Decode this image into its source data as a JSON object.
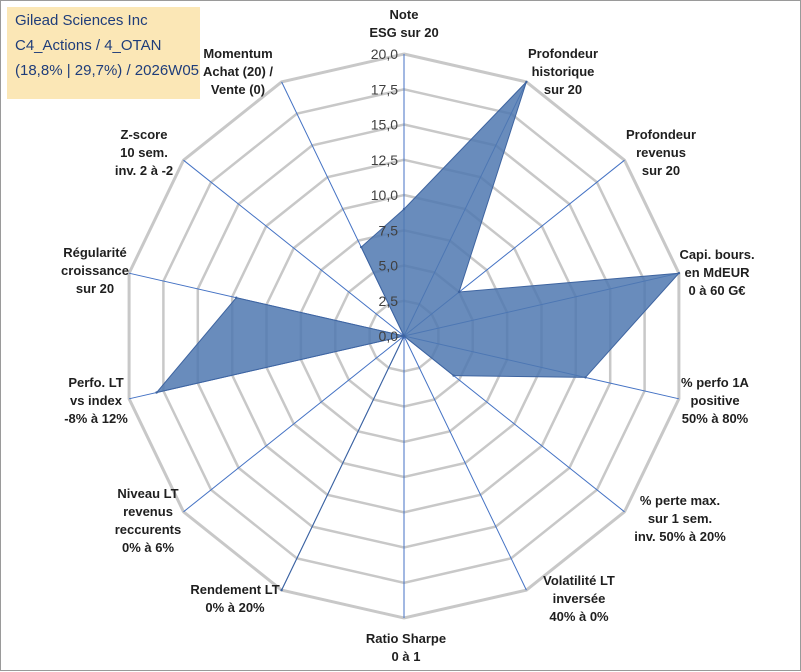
{
  "info": {
    "line1": "Gilead Sciences Inc",
    "line2": "C4_Actions / 4_OTAN",
    "line3": "(18,8% | 29,7%) / 2026W05"
  },
  "chart_data": {
    "type": "radar",
    "title": "",
    "range": [
      0,
      20
    ],
    "ticks": [
      "0,0",
      "2,5",
      "5,0",
      "7,5",
      "10,0",
      "12,5",
      "15,0",
      "17,5",
      "20,0"
    ],
    "axes": [
      [
        "Note",
        "ESG sur 20"
      ],
      [
        "Profondeur",
        "historique",
        "sur 20"
      ],
      [
        "Profondeur",
        "revenus",
        "sur 20"
      ],
      [
        "Capi. bours.",
        "en MdEUR",
        "0 à 60 G€"
      ],
      [
        "% perfo 1A",
        "positive",
        "50% à 80%"
      ],
      [
        "% perte max.",
        "sur 1 sem.",
        "inv. 50% à 20%"
      ],
      [
        "Volatilité LT",
        "inversée",
        "40% à 0%"
      ],
      [
        "Ratio Sharpe",
        "0 à 1"
      ],
      [
        "Rendement LT",
        "0% à 20%"
      ],
      [
        "Niveau LT",
        "revenus",
        "reccurents",
        "0% à 6%"
      ],
      [
        "Perfo. LT",
        "vs index",
        "-8% à 12%"
      ],
      [
        "Régularité",
        "croissance",
        "sur 20"
      ],
      [
        "Z-score",
        "10 sem.",
        "inv. 2 à -2"
      ],
      [
        "Momentum",
        "Achat (20) /",
        "Vente (0)"
      ]
    ],
    "series": [
      {
        "name": "Gilead Sciences Inc",
        "values": [
          9.0,
          20.0,
          5.0,
          20.0,
          13.2,
          4.5,
          0.0,
          0.0,
          20.0,
          0.0,
          18.0,
          12.2,
          0.0,
          7.0
        ]
      }
    ],
    "colors": {
      "fill": "#4f78b0",
      "stroke": "#3e64a0",
      "grid": "#c8c8c8",
      "spoke": "#4472c4"
    }
  }
}
